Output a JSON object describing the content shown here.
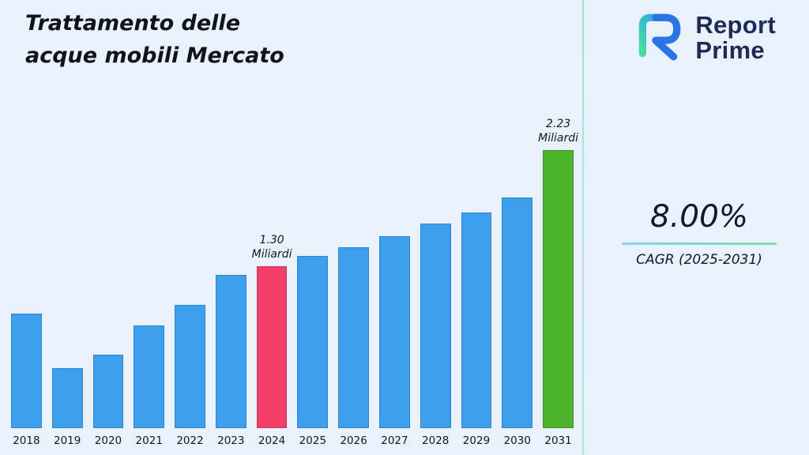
{
  "header": {
    "title_line1": "Trattamento delle",
    "title_line2": "acque mobili Mercato"
  },
  "logo": {
    "line1": "Report",
    "line2": "Prime",
    "icon": "report-prime-mark",
    "brand_color": "#1d2b56",
    "accent_blue": "#2a74e8",
    "accent_green": "#49dfa0"
  },
  "stats": {
    "cagr_value": "8.00%",
    "cagr_label": "CAGR (2025-2031)"
  },
  "chart_data": {
    "type": "bar",
    "title": "Trattamento delle acque mobili Mercato",
    "categories": [
      "2018",
      "2019",
      "2020",
      "2021",
      "2022",
      "2023",
      "2024",
      "2025",
      "2026",
      "2027",
      "2028",
      "2029",
      "2030",
      "2031"
    ],
    "values": [
      0.92,
      0.48,
      0.59,
      0.82,
      0.99,
      1.23,
      1.3,
      1.38,
      1.45,
      1.54,
      1.64,
      1.73,
      1.85,
      2.23
    ],
    "unit": "Miliardi",
    "ylim": [
      0,
      2.4
    ],
    "gridlines": false,
    "value_axis_visible": false,
    "legend": "none",
    "bar_color_default": "#3da0ef",
    "bar_colors": {
      "2024": "#f53d69",
      "2031": "#4cb32b"
    },
    "annotations": [
      {
        "category": "2024",
        "lines": [
          "1.30",
          "Miliardi"
        ]
      },
      {
        "category": "2031",
        "lines": [
          "2.23",
          "Miliardi"
        ]
      }
    ]
  }
}
